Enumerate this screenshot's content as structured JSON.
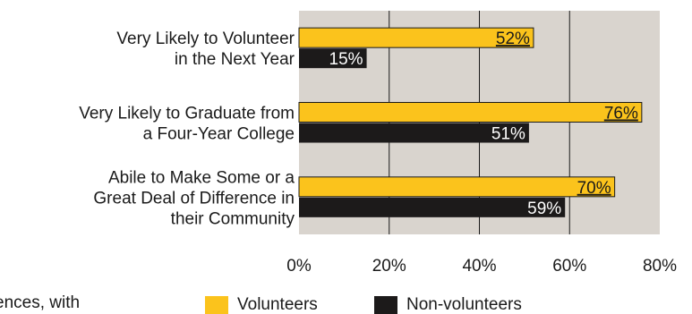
{
  "chart_data": {
    "type": "bar",
    "orientation": "horizontal",
    "categories": [
      [
        "Very Likely to Volunteer",
        "in the Next Year"
      ],
      [
        "Very Likely to Graduate from",
        "a Four-Year College"
      ],
      [
        "Abile to Make Some or a",
        "Great Deal of Difference in",
        "their Community"
      ]
    ],
    "series": [
      {
        "name": "Volunteers",
        "values": [
          52,
          76,
          70
        ],
        "labels": [
          "52%",
          "76%",
          "70%"
        ],
        "color": "#fbc31c"
      },
      {
        "name": "Non-volunteers",
        "values": [
          15,
          51,
          59
        ],
        "labels": [
          "15%",
          "51%",
          "59%"
        ],
        "color": "#1c1a1a"
      }
    ],
    "x_ticks": [
      "0%",
      "20%",
      "40%",
      "60%",
      "80%"
    ],
    "xlim": [
      0,
      80
    ],
    "grid": true,
    "plot_background": "#d9d4ce",
    "legend_position": "bottom"
  },
  "cutoff_text": "ences, with"
}
